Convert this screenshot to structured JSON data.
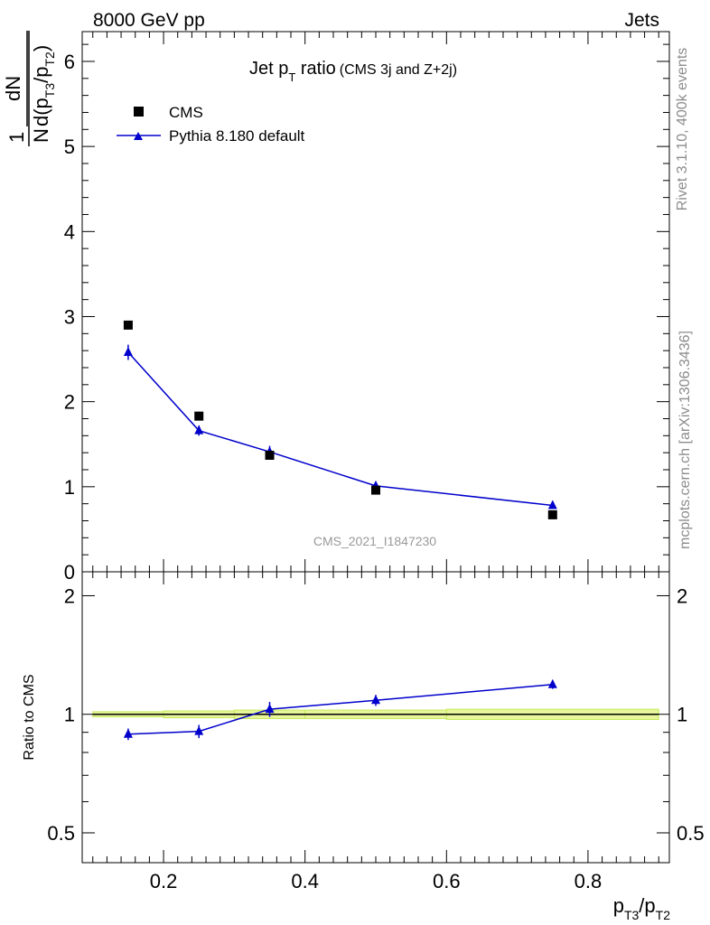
{
  "header": {
    "energy": "8000 GeV pp",
    "process": "Jets",
    "side_top": "Rivet 3.1.10,  400k events",
    "side_bottom": "mcplots.cern.ch [arXiv:1306.3436]"
  },
  "chart_data": [
    {
      "type": "scatter",
      "title_main": "Jet p",
      "title_sub": "T",
      "title_ratio": " ratio",
      "title_note": "(CMS 3j and Z+2j)",
      "watermark": "CMS_2021_I1847230",
      "ylabel": {
        "one": "1",
        "n": "N",
        "dn": "dN",
        "d": "d(p",
        "t3": "T3",
        "slash": "/p",
        "t2": "T2",
        "close": ")"
      },
      "xlim": [
        0.085,
        0.915
      ],
      "ylim": [
        0,
        6.35
      ],
      "yticks": [
        0,
        1,
        2,
        3,
        4,
        5,
        6
      ],
      "ytick_labels": [
        "0",
        "1",
        "2",
        "3",
        "4",
        "5",
        "6"
      ],
      "legend_position": "top-left",
      "series": [
        {
          "name": "CMS",
          "marker": "square",
          "color": "#000000",
          "x": [
            0.15,
            0.25,
            0.35,
            0.5,
            0.75
          ],
          "y": [
            2.9,
            1.83,
            1.37,
            0.96,
            0.67
          ]
        },
        {
          "name": "Pythia 8.180 default",
          "marker": "triangle",
          "color": "#0000cc",
          "x": [
            0.15,
            0.25,
            0.35,
            0.5,
            0.75
          ],
          "y": [
            2.58,
            1.66,
            1.41,
            1.01,
            0.78
          ],
          "yerr": [
            0.09,
            0.06,
            0.07,
            0.04,
            0.03
          ]
        }
      ]
    },
    {
      "type": "scatter",
      "ylabel": "Ratio to CMS",
      "xlabel": {
        "p": "p",
        "t3": "T3",
        "slash": "/p",
        "t2": "T2"
      },
      "xlim": [
        0.085,
        0.915
      ],
      "ylim": [
        0.42,
        2.3
      ],
      "xticks": [
        0.2,
        0.4,
        0.6,
        0.8
      ],
      "xtick_labels": [
        "0.2",
        "0.4",
        "0.6",
        "0.8"
      ],
      "yticks": [
        0.5,
        1,
        2
      ],
      "ytick_labels": [
        "0.5",
        "1",
        "2"
      ],
      "log_y": true,
      "reference_line": 1,
      "band_color": "#e8f59b",
      "band_edge_color": "#c5ec5d",
      "band": [
        {
          "x0": 0.1,
          "x1": 0.2,
          "lo": 0.985,
          "hi": 1.015
        },
        {
          "x0": 0.2,
          "x1": 0.3,
          "lo": 0.98,
          "hi": 1.02
        },
        {
          "x0": 0.3,
          "x1": 0.4,
          "lo": 0.975,
          "hi": 1.025
        },
        {
          "x0": 0.4,
          "x1": 0.6,
          "lo": 0.975,
          "hi": 1.025
        },
        {
          "x0": 0.6,
          "x1": 0.9,
          "lo": 0.97,
          "hi": 1.03
        }
      ],
      "series": [
        {
          "name": "Pythia 8.180 default",
          "color": "#0000cc",
          "x": [
            0.15,
            0.25,
            0.35,
            0.5,
            0.75
          ],
          "y": [
            0.89,
            0.905,
            1.03,
            1.085,
            1.19
          ],
          "yerr": [
            0.03,
            0.035,
            0.045,
            0.035,
            0.03
          ]
        }
      ]
    }
  ]
}
